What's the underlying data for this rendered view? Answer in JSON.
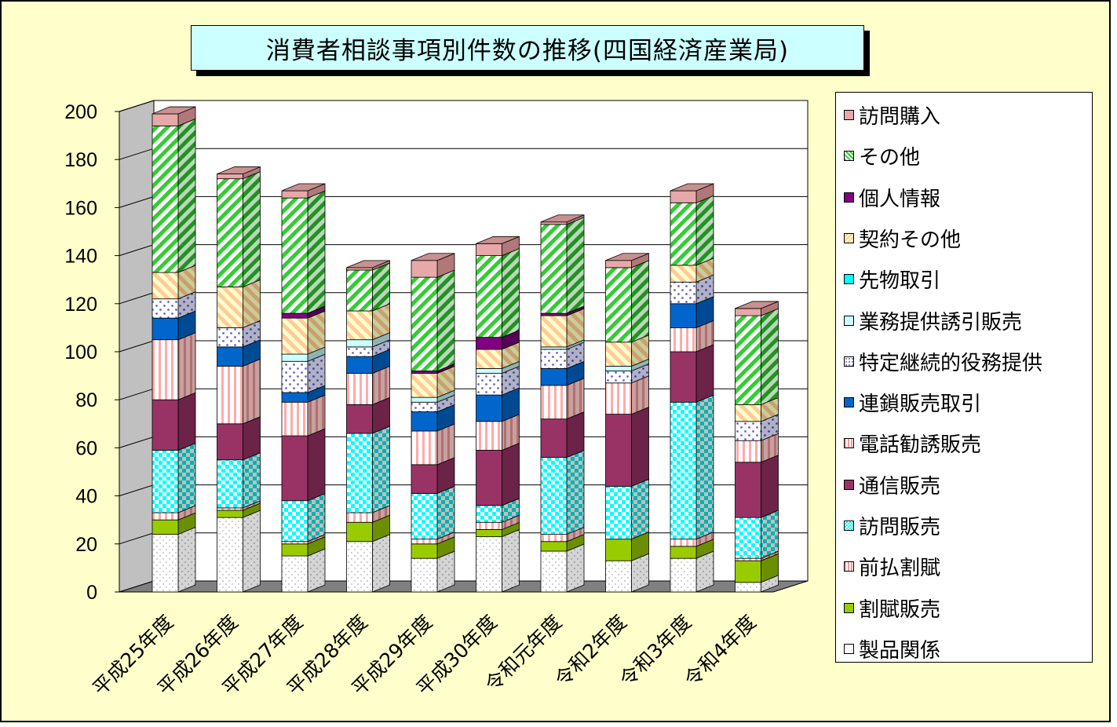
{
  "chart_data": {
    "type": "bar",
    "stacked": true,
    "title": "消費者相談事項別件数の推移(四国経済産業局)",
    "categories": [
      "平成25年度",
      "平成26年度",
      "平成27年度",
      "平成28年度",
      "平成29年度",
      "平成30年度",
      "令和元年度",
      "令和2年度",
      "令和3年度",
      "令和4年度"
    ],
    "ylim": [
      0,
      200
    ],
    "yticks": [
      0,
      20,
      40,
      60,
      80,
      100,
      120,
      140,
      160,
      180,
      200
    ],
    "grid": true,
    "legend_position": "right",
    "series": [
      {
        "name": "製品関係",
        "color": "#ffffff",
        "values": [
          24,
          31,
          15,
          21,
          14,
          23,
          17,
          13,
          14,
          4
        ]
      },
      {
        "name": "割賦販売",
        "color": "#99cc00",
        "values": [
          6,
          3,
          5,
          8,
          6,
          3,
          4,
          9,
          5,
          9
        ]
      },
      {
        "name": "前払割賦",
        "color": "#ff9999",
        "values": [
          3,
          1,
          1,
          4,
          2,
          3,
          3,
          0,
          3,
          1
        ]
      },
      {
        "name": "訪問販売",
        "color": "#00ffff",
        "values": [
          26,
          20,
          17,
          33,
          19,
          7,
          32,
          22,
          57,
          17
        ]
      },
      {
        "name": "通信販売",
        "color": "#993366",
        "values": [
          21,
          15,
          27,
          12,
          12,
          23,
          16,
          30,
          21,
          23
        ]
      },
      {
        "name": "電話勧誘販売",
        "color": "#ff9999",
        "values": [
          25,
          24,
          14,
          13,
          14,
          12,
          14,
          13,
          10,
          9
        ]
      },
      {
        "name": "連鎖販売取引",
        "color": "#0066cc",
        "values": [
          9,
          8,
          4,
          7,
          8,
          11,
          7,
          0,
          10,
          0
        ]
      },
      {
        "name": "特定継続的役務提供",
        "color": "#ccccff",
        "values": [
          8,
          8,
          13,
          4,
          4,
          9,
          8,
          5,
          9,
          8
        ]
      },
      {
        "name": "業務提供誘引販売",
        "color": "#ccffff",
        "values": [
          0,
          0,
          3,
          3,
          2,
          2,
          1,
          2,
          0,
          0
        ]
      },
      {
        "name": "先物取引",
        "color": "#00ffff",
        "values": [
          0,
          0,
          0,
          0,
          0,
          0,
          0,
          0,
          0,
          0
        ]
      },
      {
        "name": "契約その他",
        "color": "#ffcc99",
        "values": [
          11,
          17,
          15,
          12,
          10,
          8,
          13,
          10,
          7,
          7
        ]
      },
      {
        "name": "個人情報",
        "color": "#800080",
        "values": [
          0,
          0,
          2,
          0,
          1,
          5,
          1,
          0,
          0,
          0
        ]
      },
      {
        "name": "その他",
        "color": "#33cc33",
        "values": [
          61,
          45,
          48,
          17,
          39,
          34,
          37,
          31,
          26,
          37
        ]
      },
      {
        "name": "訪問購入",
        "color": "#e6a8a8",
        "values": [
          5,
          2,
          3,
          1,
          7,
          5,
          1,
          3,
          5,
          3
        ]
      }
    ]
  }
}
